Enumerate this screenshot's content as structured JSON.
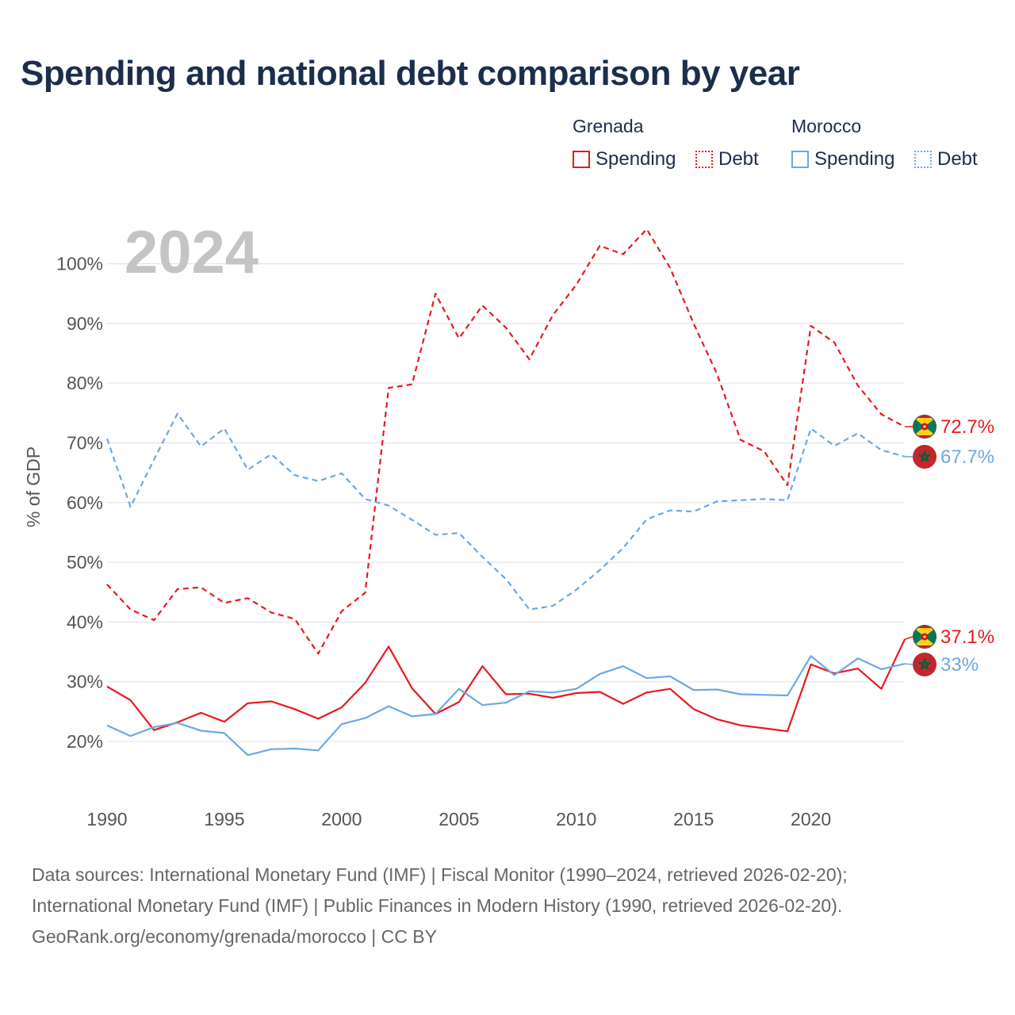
{
  "title": "Spending and national debt comparison by year",
  "legend": {
    "groups": [
      {
        "country": "Grenada",
        "color": "#e8191f",
        "items": [
          {
            "label": "Spending",
            "style": "solid"
          },
          {
            "label": "Debt",
            "style": "dotted"
          }
        ]
      },
      {
        "country": "Morocco",
        "color": "#6aa9e3",
        "items": [
          {
            "label": "Spending",
            "style": "solid"
          },
          {
            "label": "Debt",
            "style": "dotted"
          }
        ]
      }
    ]
  },
  "chart_data": {
    "type": "line",
    "year_label": "2024",
    "ylabel": "% of GDP",
    "xlabel": "",
    "xlim": [
      1990,
      2024
    ],
    "ylim": [
      10,
      110
    ],
    "x_ticks": [
      "1990",
      "1995",
      "2000",
      "2005",
      "2010",
      "2015",
      "2020"
    ],
    "y_ticks": [
      "20%",
      "30%",
      "40%",
      "50%",
      "60%",
      "70%",
      "80%",
      "90%",
      "100%"
    ],
    "grid": true,
    "years": [
      1990,
      1991,
      1992,
      1993,
      1994,
      1995,
      1996,
      1997,
      1998,
      1999,
      2000,
      2001,
      2002,
      2003,
      2004,
      2005,
      2006,
      2007,
      2008,
      2009,
      2010,
      2011,
      2012,
      2013,
      2014,
      2015,
      2016,
      2017,
      2018,
      2019,
      2020,
      2021,
      2022,
      2023,
      2024
    ],
    "series": [
      {
        "name": "Grenada Debt",
        "country": "Grenada",
        "measure": "Debt",
        "color": "#e8191f",
        "dash": "dashed",
        "values": [
          46.3,
          42.1,
          40.3,
          45.5,
          45.8,
          43.2,
          44.0,
          41.6,
          40.5,
          34.7,
          41.8,
          44.9,
          79.2,
          79.8,
          95.0,
          87.5,
          93.0,
          89.3,
          84.0,
          91.4,
          96.5,
          103.0,
          101.6,
          105.8,
          99.3,
          90.0,
          81.5,
          70.5,
          68.6,
          62.9,
          89.6,
          86.8,
          79.6,
          74.8,
          72.7
        ],
        "end_label": "72.7%"
      },
      {
        "name": "Morocco Debt",
        "country": "Morocco",
        "measure": "Debt",
        "color": "#6aa9e3",
        "dash": "dashed",
        "values": [
          70.7,
          59.3,
          67.2,
          74.9,
          69.4,
          72.4,
          65.5,
          68.1,
          64.6,
          63.6,
          64.9,
          60.6,
          59.5,
          57.1,
          54.6,
          54.9,
          50.9,
          47.2,
          42.1,
          42.7,
          45.4,
          48.7,
          52.4,
          57.2,
          58.7,
          58.5,
          60.2,
          60.4,
          60.6,
          60.4,
          72.4,
          69.5,
          71.6,
          68.8,
          67.7
        ],
        "end_label": "67.7%"
      },
      {
        "name": "Grenada Spending",
        "country": "Grenada",
        "measure": "Spending",
        "color": "#e8191f",
        "dash": "solid",
        "values": [
          29.2,
          26.9,
          21.9,
          23.2,
          24.8,
          23.3,
          26.4,
          26.7,
          25.4,
          23.8,
          25.7,
          29.8,
          35.9,
          28.9,
          24.6,
          26.6,
          32.6,
          27.9,
          28.0,
          27.3,
          28.1,
          28.3,
          26.3,
          28.2,
          28.8,
          25.4,
          23.7,
          22.7,
          22.2,
          21.7,
          32.9,
          31.4,
          32.2,
          28.8,
          37.1
        ],
        "end_label": "37.1%"
      },
      {
        "name": "Morocco Spending",
        "country": "Morocco",
        "measure": "Spending",
        "color": "#6aa9e3",
        "dash": "solid",
        "values": [
          22.7,
          20.9,
          22.4,
          23.1,
          21.8,
          21.4,
          17.7,
          18.7,
          18.8,
          18.5,
          22.9,
          23.9,
          25.9,
          24.2,
          24.6,
          28.8,
          26.1,
          26.5,
          28.4,
          28.2,
          28.8,
          31.3,
          32.6,
          30.6,
          30.9,
          28.6,
          28.7,
          27.9,
          27.8,
          27.7,
          34.3,
          31.1,
          33.9,
          32.1,
          33.0
        ],
        "end_label": "33%"
      }
    ]
  },
  "footer": {
    "line1": "Data sources: International Monetary Fund (IMF) | Fiscal Monitor (1990–2024, retrieved 2026-02-20);",
    "line2": "International Monetary Fund (IMF) | Public Finances in Modern History (1990, retrieved 2026-02-20).",
    "line3": "GeoRank.org/economy/grenada/morocco | CC BY"
  },
  "colors": {
    "grenada": "#e8191f",
    "morocco": "#6aa9e3",
    "title": "#1b2e4b",
    "axis_text": "#555555",
    "grid": "#e6e6e6",
    "year_label": "#c4c4c4"
  }
}
